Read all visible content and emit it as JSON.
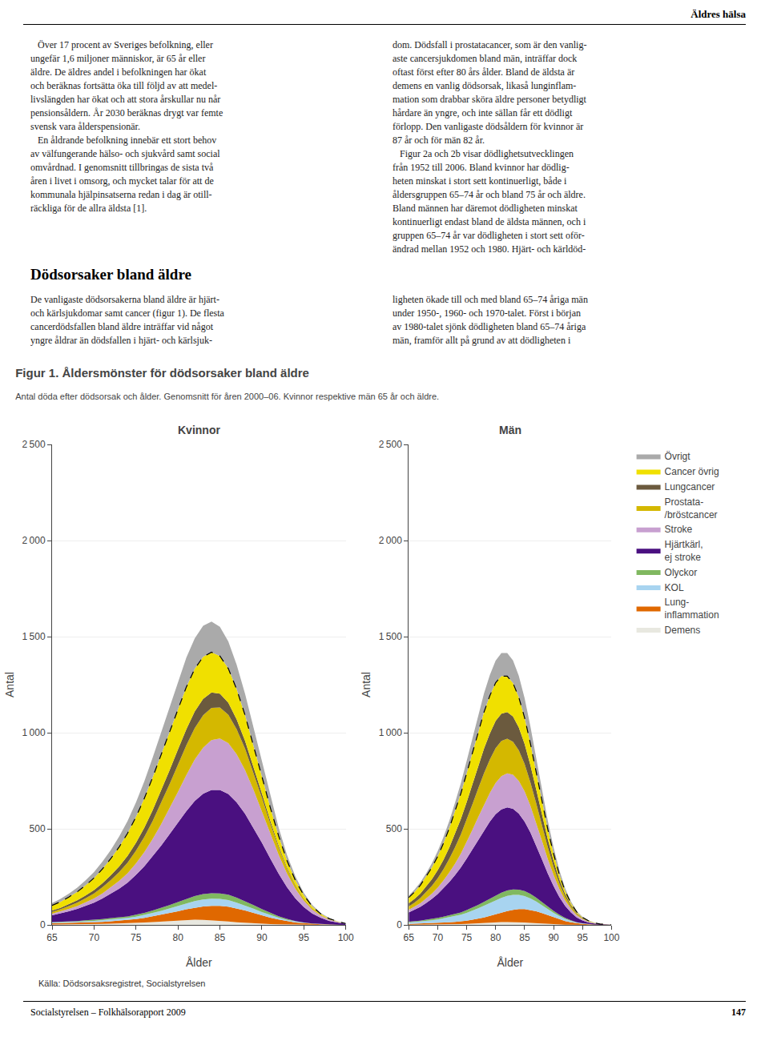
{
  "chart_data": [
    {
      "type": "area",
      "stacked": true,
      "title": "Kvinnor",
      "xlabel": "Ålder",
      "ylabel": "Antal",
      "grid": "y",
      "annotations": [
        "Äldres hälsa",
        "   Över 17 procent av Sveriges befolkning, eller\nungefär 1,6 miljoner människor, är 65 år eller\näldre. De äldres andel i befolkningen har ökat\noch beräknas fortsätta öka till följd av att medel-\nlivslängden har ökat och att stora årskullar nu når\npensionsåldern. År 2030 beräknas drygt var femte\nsvensk vara ålderspensionär.\n   En åldrande befolkning innebär ett stort behov\nav välfungerande hälso- och sjukvård samt social\nomvårdnad. I genomsnitt tillbringas de sista två\nåren i livet i omsorg, och mycket talar för att de\nkommunala hjälpinsatserna redan i dag är otill-\nräckliga för de allra äldsta [1].",
        "dom. Dödsfall i prostatacancer, som är den vanlig-\naste cancersjukdomen bland män, inträffar dock\noftast först efter 80 års ålder. Bland de äldsta är\ndemens en vanlig dödsorsak, likaså lunginflam-\nmation som drabbar sköra äldre personer betydligt\nhårdare än yngre, och inte sällan får ett dödligt\nförlopp. Den vanligaste dödsåldern för kvinnor är\n87 år och för män 82 år.\n   Figur 2a och 2b visar dödlighetsutvecklingen\nfrån 1952 till 2006. Bland kvinnor har dödlig-\nheten minskat i stort sett kontinuerligt, både i\nåldersgruppen 65–74 år och bland 75 år och äldre.\nBland männen har däremot dödligheten minskat\nkontinuerligt endast bland de äldsta männen, och i\ngruppen 65–74 år var dödligheten i stort sett oför-\nändrad mellan 1952 och 1980. Hjärt- och kärldöd-",
        "Dödsorsaker bland äldre",
        "De vanligaste dödsorsakerna bland äldre är hjärt-\noch kärlsjukdomar samt cancer (figur 1). De flesta\ncancerdödsfallen bland äldre inträffar vid något\nyngre åldrar än dödsfallen i hjärt- och kärlsjuk-",
        "ligheten ökade till och med bland 65–74 åriga män\nunder 1950-, 1960- och 1970-talet. Först i början\nav 1980-talet sjönk dödligheten bland 65–74 åriga\nmän, framför allt på grund av att dödligheten i",
        "Figur 1. Åldersmönster för dödsorsaker bland äldre",
        "Antal döda efter dödsorsak och ålder. Genomsnitt för åren 2000–06. Kvinnor respektive män 65 år och äldre.",
        "Källa: Dödsorsaksregistret, Socialstyrelsen",
        "Socialstyrelsen – Folkhälsorapport 2009",
        "147"
      ],
      "x": [
        65,
        66,
        67,
        68,
        69,
        70,
        71,
        72,
        73,
        74,
        75,
        76,
        77,
        78,
        79,
        80,
        81,
        82,
        83,
        84,
        85,
        86,
        87,
        88,
        89,
        90,
        91,
        92,
        93,
        94,
        95,
        96,
        97,
        98,
        99,
        100
      ],
      "xlim": [
        65,
        100
      ],
      "xticks": [
        65,
        70,
        75,
        80,
        85,
        90,
        95,
        100
      ],
      "ylim": [
        0,
        2500
      ],
      "yticks": [
        0,
        500,
        {
          "value": 1000,
          "label": "1 000"
        },
        {
          "value": 1500,
          "label": "1 500"
        },
        {
          "value": 2000,
          "label": "2 000"
        },
        {
          "value": 2500,
          "label": "2 500"
        }
      ],
      "series": [
        {
          "name": "Demens",
          "color": "#e8e8e0",
          "values": [
            2,
            2,
            3,
            3,
            4,
            4,
            5,
            6,
            7,
            8,
            10,
            12,
            15,
            18,
            21,
            24,
            26,
            27,
            26,
            24,
            21,
            18,
            14,
            11,
            8,
            6,
            4,
            3,
            2,
            1,
            1,
            0,
            0,
            0,
            0,
            0
          ]
        },
        {
          "name": "Lung-\ninflammation",
          "color": "#e06800",
          "values": [
            6,
            7,
            7,
            8,
            9,
            10,
            11,
            13,
            15,
            17,
            20,
            24,
            29,
            34,
            40,
            47,
            55,
            63,
            70,
            75,
            78,
            77,
            72,
            64,
            55,
            44,
            34,
            25,
            18,
            12,
            8,
            5,
            3,
            2,
            1,
            0
          ]
        },
        {
          "name": "KOL",
          "color": "#a8d4f0",
          "values": [
            4,
            4,
            5,
            5,
            6,
            7,
            8,
            9,
            10,
            11,
            13,
            15,
            18,
            21,
            24,
            28,
            31,
            34,
            36,
            37,
            36,
            34,
            30,
            26,
            21,
            17,
            13,
            9,
            6,
            4,
            2,
            1,
            1,
            0,
            0,
            0
          ]
        },
        {
          "name": "Olyckor",
          "color": "#80b860",
          "values": [
            3,
            3,
            4,
            4,
            5,
            5,
            6,
            7,
            7,
            8,
            10,
            11,
            13,
            15,
            18,
            20,
            23,
            26,
            28,
            29,
            29,
            28,
            26,
            23,
            19,
            15,
            11,
            8,
            5,
            3,
            2,
            1,
            1,
            0,
            0,
            0
          ]
        },
        {
          "name": "Hjärtkärl,\nej stroke",
          "color": "#4a1080",
          "values": [
            35,
            43,
            52,
            63,
            75,
            90,
            107,
            127,
            150,
            176,
            207,
            243,
            282,
            325,
            369,
            414,
            457,
            495,
            522,
            537,
            538,
            524,
            495,
            454,
            403,
            346,
            284,
            222,
            165,
            118,
            80,
            52,
            32,
            19,
            11,
            5
          ]
        },
        {
          "name": "Stroke",
          "color": "#c8a0d0",
          "values": [
            8,
            10,
            12,
            15,
            18,
            22,
            27,
            33,
            40,
            49,
            60,
            74,
            91,
            111,
            134,
            159,
            187,
            215,
            240,
            259,
            268,
            265,
            250,
            227,
            197,
            163,
            129,
            98,
            71,
            49,
            33,
            20,
            12,
            7,
            4,
            2
          ]
        },
        {
          "name": "Prostata-\n/bröstcancer",
          "color": "#d4b800",
          "values": [
            10,
            12,
            15,
            18,
            22,
            26,
            32,
            38,
            46,
            55,
            66,
            79,
            94,
            110,
            126,
            141,
            155,
            164,
            169,
            168,
            161,
            148,
            131,
            112,
            91,
            71,
            53,
            38,
            26,
            17,
            11,
            7,
            4,
            2,
            1,
            0
          ]
        },
        {
          "name": "Lungcancer",
          "color": "#6b5a3e",
          "values": [
            7,
            8,
            10,
            12,
            14,
            17,
            21,
            25,
            29,
            35,
            41,
            48,
            56,
            64,
            72,
            79,
            84,
            86,
            85,
            80,
            72,
            62,
            51,
            40,
            30,
            22,
            15,
            10,
            6,
            4,
            2,
            1,
            0,
            0,
            0,
            0
          ]
        },
        {
          "name": "Cancer övrig",
          "color": "#f0e000",
          "values": [
            26,
            31,
            37,
            44,
            53,
            63,
            74,
            87,
            102,
            118,
            135,
            153,
            171,
            188,
            202,
            213,
            220,
            222,
            219,
            210,
            196,
            178,
            157,
            134,
            111,
            89,
            68,
            50,
            35,
            23,
            15,
            9,
            5,
            3,
            1,
            0
          ]
        },
        {
          "name": "Övrigt",
          "color": "#aaaaaa",
          "values": [
            13,
            15,
            18,
            22,
            26,
            31,
            38,
            45,
            54,
            64,
            76,
            89,
            103,
            117,
            131,
            143,
            153,
            159,
            161,
            159,
            152,
            141,
            127,
            111,
            93,
            75,
            58,
            43,
            30,
            21,
            13,
            8,
            5,
            3,
            1,
            1
          ]
        },
        {
          "type": "line",
          "line_style": "dashed",
          "color": "#000000",
          "values": [
            101,
            120,
            145,
            172,
            206,
            244,
            291,
            345,
            406,
            477,
            562,
            659,
            769,
            886,
            1006,
            1125,
            1238,
            1332,
            1395,
            1419,
            1399,
            1334,
            1226,
            1091,
            935,
            773,
            611,
            463,
            334,
            231,
            154,
            96,
            58,
            33,
            18,
            7
          ]
        }
      ]
    },
    {
      "type": "area",
      "stacked": true,
      "title": "Män",
      "xlabel": "Ålder",
      "ylabel": "Antal",
      "grid": "y",
      "x": [
        65,
        66,
        67,
        68,
        69,
        70,
        71,
        72,
        73,
        74,
        75,
        76,
        77,
        78,
        79,
        80,
        81,
        82,
        83,
        84,
        85,
        86,
        87,
        88,
        89,
        90,
        91,
        92,
        93,
        94,
        95,
        96,
        97,
        98,
        99,
        100
      ],
      "xlim": [
        65,
        100
      ],
      "xticks": [
        65,
        70,
        75,
        80,
        85,
        90,
        95,
        100
      ],
      "ylim": [
        0,
        2500
      ],
      "yticks": [
        0,
        500,
        {
          "value": 1000,
          "label": "1 000"
        },
        {
          "value": 1500,
          "label": "1 500"
        },
        {
          "value": 2000,
          "label": "2 000"
        },
        {
          "value": 2500,
          "label": "2 500"
        }
      ],
      "series": [
        {
          "name": "Demens",
          "color": "#e8e8e0",
          "values": [
            1,
            1,
            1,
            2,
            2,
            2,
            3,
            3,
            4,
            4,
            5,
            7,
            8,
            10,
            12,
            14,
            15,
            15,
            15,
            14,
            12,
            10,
            8,
            6,
            5,
            3,
            2,
            1,
            1,
            0,
            0,
            0,
            0,
            0,
            0,
            0
          ]
        },
        {
          "name": "Lung-\ninflammation",
          "color": "#e06800",
          "values": [
            4,
            5,
            5,
            6,
            7,
            8,
            9,
            11,
            12,
            14,
            17,
            20,
            24,
            29,
            35,
            42,
            49,
            57,
            63,
            68,
            70,
            68,
            63,
            55,
            45,
            36,
            27,
            19,
            13,
            8,
            5,
            3,
            2,
            1,
            0,
            0
          ]
        },
        {
          "name": "KOL",
          "color": "#a8d4f0",
          "values": [
            8,
            9,
            11,
            13,
            15,
            18,
            22,
            26,
            30,
            35,
            41,
            47,
            54,
            61,
            67,
            73,
            77,
            79,
            78,
            74,
            68,
            60,
            51,
            41,
            32,
            24,
            17,
            11,
            7,
            4,
            2,
            1,
            0,
            0,
            0,
            0
          ]
        },
        {
          "name": "Olyckor",
          "color": "#80b860",
          "values": [
            4,
            4,
            5,
            6,
            7,
            8,
            9,
            10,
            11,
            12,
            14,
            16,
            18,
            20,
            22,
            25,
            27,
            28,
            28,
            27,
            26,
            23,
            20,
            17,
            13,
            10,
            7,
            5,
            3,
            2,
            1,
            0,
            0,
            0,
            0,
            0
          ]
        },
        {
          "name": "Hjärtkärl,\nej stroke",
          "color": "#4a1080",
          "values": [
            48,
            59,
            72,
            87,
            104,
            124,
            147,
            173,
            202,
            234,
            268,
            304,
            340,
            373,
            401,
            422,
            433,
            432,
            420,
            396,
            362,
            320,
            272,
            222,
            173,
            129,
            92,
            63,
            41,
            25,
            15,
            9,
            5,
            3,
            1,
            0
          ]
        },
        {
          "name": "Stroke",
          "color": "#c8a0d0",
          "values": [
            13,
            16,
            19,
            23,
            28,
            34,
            41,
            50,
            60,
            72,
            86,
            101,
            117,
            134,
            149,
            163,
            173,
            178,
            177,
            170,
            157,
            139,
            118,
            96,
            75,
            57,
            41,
            28,
            18,
            11,
            7,
            4,
            2,
            1,
            0,
            0
          ]
        },
        {
          "name": "Prostata-\n/bröstcancer",
          "color": "#d4b800",
          "values": [
            18,
            22,
            27,
            33,
            40,
            49,
            59,
            71,
            85,
            100,
            116,
            133,
            149,
            163,
            174,
            181,
            183,
            180,
            172,
            159,
            142,
            122,
            101,
            80,
            61,
            44,
            30,
            20,
            12,
            7,
            4,
            2,
            1,
            0,
            0,
            0
          ]
        },
        {
          "name": "Lungcancer",
          "color": "#6b5a3e",
          "values": [
            16,
            19,
            23,
            28,
            34,
            41,
            49,
            58,
            69,
            80,
            92,
            105,
            117,
            128,
            136,
            141,
            142,
            138,
            131,
            119,
            105,
            89,
            72,
            56,
            42,
            30,
            20,
            13,
            8,
            4,
            2,
            1,
            0,
            0,
            0,
            0
          ]
        },
        {
          "name": "Cancer övrig",
          "color": "#f0e000",
          "values": [
            30,
            36,
            43,
            52,
            62,
            73,
            86,
            101,
            117,
            133,
            150,
            166,
            179,
            190,
            197,
            199,
            196,
            187,
            174,
            157,
            136,
            113,
            90,
            70,
            52,
            37,
            25,
            16,
            10,
            6,
            3,
            2,
            1,
            0,
            0,
            0
          ]
        },
        {
          "name": "Övrigt",
          "color": "#aaaaaa",
          "values": [
            10,
            12,
            15,
            18,
            22,
            26,
            32,
            38,
            46,
            54,
            64,
            75,
            86,
            97,
            107,
            115,
            120,
            121,
            118,
            112,
            102,
            89,
            74,
            59,
            45,
            33,
            23,
            15,
            9,
            5,
            3,
            2,
            1,
            0,
            0,
            0
          ]
        },
        {
          "type": "line",
          "line_style": "dashed",
          "color": "#000000",
          "values": [
            142,
            171,
            206,
            250,
            299,
            357,
            425,
            503,
            590,
            684,
            789,
            899,
            1006,
            1108,
            1193,
            1260,
            1295,
            1294,
            1258,
            1184,
            1078,
            944,
            795,
            643,
            498,
            370,
            261,
            176,
            113,
            67,
            39,
            22,
            11,
            5,
            1,
            0
          ]
        }
      ]
    }
  ]
}
